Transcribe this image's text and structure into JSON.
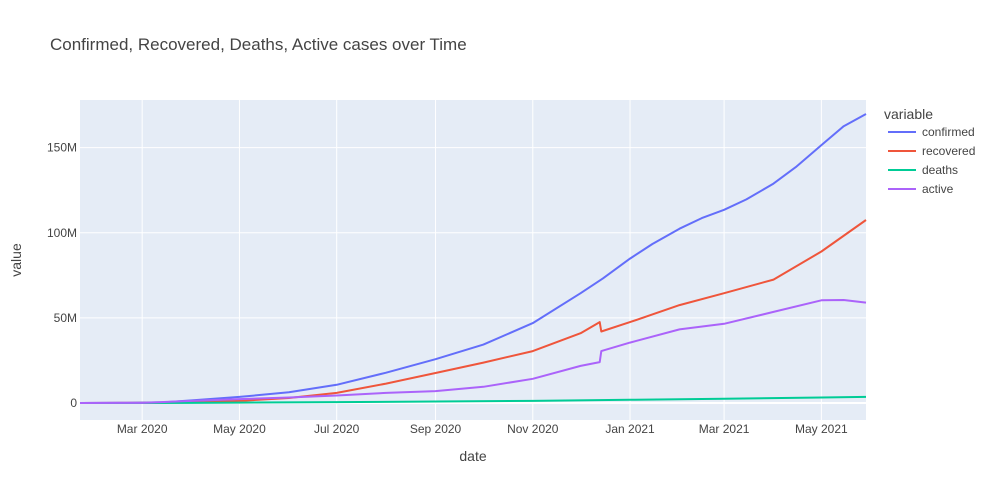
{
  "chart_data": {
    "type": "line",
    "title": "Confirmed, Recovered, Deaths, Active cases over Time",
    "xlabel": "date",
    "ylabel": "value",
    "x_range": [
      "2020-01-22",
      "2021-05-29"
    ],
    "ylim": [
      -10000000,
      178000000
    ],
    "x_ticks": [
      {
        "date": "2020-03-01",
        "label": "Mar 2020"
      },
      {
        "date": "2020-05-01",
        "label": "May 2020"
      },
      {
        "date": "2020-07-01",
        "label": "Jul 2020"
      },
      {
        "date": "2020-09-01",
        "label": "Sep 2020"
      },
      {
        "date": "2020-11-01",
        "label": "Nov 2020"
      },
      {
        "date": "2021-01-01",
        "label": "Jan 2021"
      },
      {
        "date": "2021-03-01",
        "label": "Mar 2021"
      },
      {
        "date": "2021-05-01",
        "label": "May 2021"
      }
    ],
    "y_ticks": [
      {
        "value": 0,
        "label": "0"
      },
      {
        "value": 50000000,
        "label": "50M"
      },
      {
        "value": 100000000,
        "label": "100M"
      },
      {
        "value": 150000000,
        "label": "150M"
      }
    ],
    "grid": true,
    "legend": {
      "title": "variable",
      "placement": "right"
    },
    "series": [
      {
        "name": "confirmed",
        "color": "#636efa",
        "points": [
          [
            "2020-01-22",
            0
          ],
          [
            "2020-02-15",
            0.1
          ],
          [
            "2020-03-15",
            0.4
          ],
          [
            "2020-04-01",
            1.5
          ],
          [
            "2020-05-01",
            3.6
          ],
          [
            "2020-06-01",
            6.3
          ],
          [
            "2020-07-01",
            10.7
          ],
          [
            "2020-08-01",
            17.8
          ],
          [
            "2020-09-01",
            25.7
          ],
          [
            "2020-10-01",
            34.3
          ],
          [
            "2020-11-01",
            46.9
          ],
          [
            "2020-12-01",
            64.5
          ],
          [
            "2020-12-15",
            73.2
          ],
          [
            "2021-01-01",
            84.8
          ],
          [
            "2021-01-15",
            93.4
          ],
          [
            "2021-02-01",
            102.4
          ],
          [
            "2021-02-15",
            108.6
          ],
          [
            "2021-03-01",
            113.5
          ],
          [
            "2021-03-15",
            119.6
          ],
          [
            "2021-04-01",
            128.9
          ],
          [
            "2021-04-15",
            138.6
          ],
          [
            "2021-05-01",
            151.5
          ],
          [
            "2021-05-15",
            162.6
          ],
          [
            "2021-05-29",
            169.8
          ]
        ]
      },
      {
        "name": "recovered",
        "color": "#ef553b",
        "points": [
          [
            "2020-01-22",
            0
          ],
          [
            "2020-03-01",
            0.05
          ],
          [
            "2020-04-01",
            0.3
          ],
          [
            "2020-05-01",
            1.2
          ],
          [
            "2020-06-01",
            2.9
          ],
          [
            "2020-07-01",
            5.9
          ],
          [
            "2020-08-01",
            11.4
          ],
          [
            "2020-09-01",
            17.6
          ],
          [
            "2020-10-01",
            23.7
          ],
          [
            "2020-11-01",
            30.5
          ],
          [
            "2020-12-01",
            41.0
          ],
          [
            "2020-12-13",
            47.5
          ],
          [
            "2020-12-14",
            42.0
          ],
          [
            "2021-01-01",
            47.5
          ],
          [
            "2021-02-01",
            57.5
          ],
          [
            "2021-03-01",
            64.5
          ],
          [
            "2021-04-01",
            72.5
          ],
          [
            "2021-05-01",
            89.0
          ],
          [
            "2021-05-29",
            107.5
          ]
        ]
      },
      {
        "name": "deaths",
        "color": "#00cc96",
        "points": [
          [
            "2020-01-22",
            0
          ],
          [
            "2020-04-01",
            0.05
          ],
          [
            "2020-05-01",
            0.25
          ],
          [
            "2020-07-01",
            0.52
          ],
          [
            "2020-09-01",
            0.86
          ],
          [
            "2020-11-01",
            1.2
          ],
          [
            "2021-01-01",
            1.84
          ],
          [
            "2021-03-01",
            2.54
          ],
          [
            "2021-05-01",
            3.22
          ],
          [
            "2021-05-29",
            3.55
          ]
        ]
      },
      {
        "name": "active",
        "color": "#ab63fa",
        "points": [
          [
            "2020-01-22",
            0
          ],
          [
            "2020-03-01",
            0.05
          ],
          [
            "2020-04-01",
            1.2
          ],
          [
            "2020-05-01",
            2.3
          ],
          [
            "2020-06-01",
            3.2
          ],
          [
            "2020-07-01",
            4.4
          ],
          [
            "2020-08-01",
            5.9
          ],
          [
            "2020-09-01",
            7.0
          ],
          [
            "2020-10-01",
            9.5
          ],
          [
            "2020-11-01",
            14.2
          ],
          [
            "2020-12-01",
            21.8
          ],
          [
            "2020-12-13",
            24.0
          ],
          [
            "2020-12-14",
            30.5
          ],
          [
            "2021-01-01",
            35.5
          ],
          [
            "2021-02-01",
            43.2
          ],
          [
            "2021-03-01",
            46.5
          ],
          [
            "2021-04-01",
            53.5
          ],
          [
            "2021-05-01",
            60.3
          ],
          [
            "2021-05-15",
            60.5
          ],
          [
            "2021-05-29",
            59.0
          ]
        ]
      }
    ]
  }
}
